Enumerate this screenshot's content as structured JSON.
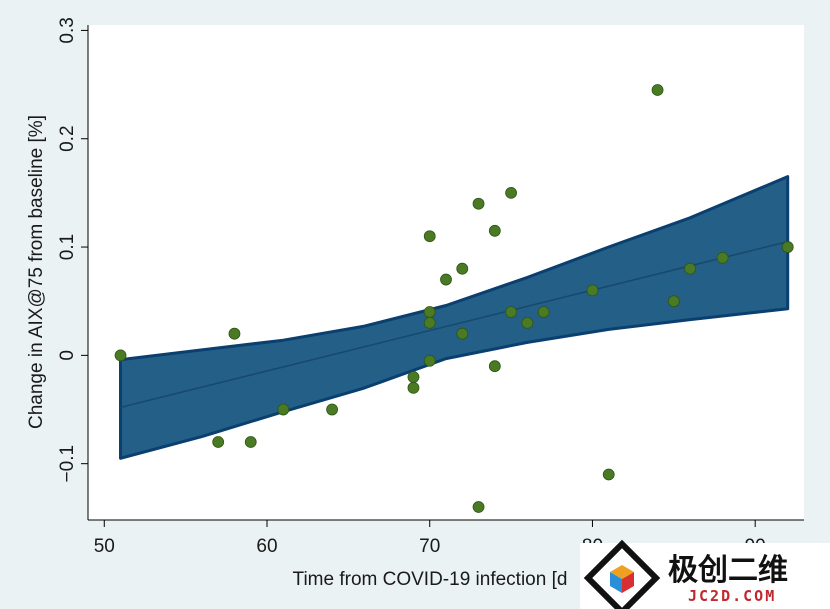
{
  "chart_data": {
    "type": "scatter",
    "xlabel": "Time from COVID-19 infection [d",
    "ylabel": "Change in AIX@75 from baseline [%]",
    "xlim": [
      49,
      93
    ],
    "ylim": [
      -0.152,
      0.305
    ],
    "x_ticks": [
      50,
      60,
      70,
      80,
      90
    ],
    "x_tick_labels": [
      "50",
      "60",
      "70",
      "80",
      "90"
    ],
    "y_ticks": [
      -0.1,
      0,
      0.1,
      0.2,
      0.3
    ],
    "y_tick_labels": [
      "−0.1",
      "0",
      "0.1",
      "0.2",
      "0.3"
    ],
    "grid": false,
    "legend": "none",
    "colors": {
      "band_fill": "#235f86",
      "band_edge": "#0a3f70",
      "fit_line": "#17496e",
      "points": "#4a7a23",
      "plot_bg": "#ffffff",
      "outer_bg": "#eaf2f3"
    },
    "series": [
      {
        "type": "scatter",
        "x": [
          51,
          57,
          58,
          59,
          61,
          64,
          69,
          69,
          70,
          70,
          70,
          70,
          71,
          72,
          72,
          73,
          73,
          74,
          74,
          75,
          75,
          76,
          77,
          80,
          81,
          84,
          85,
          86,
          88,
          92
        ],
        "y": [
          0.0,
          -0.08,
          0.02,
          -0.08,
          -0.05,
          -0.05,
          -0.02,
          -0.03,
          0.11,
          0.04,
          0.03,
          -0.005,
          0.07,
          0.08,
          0.02,
          0.14,
          -0.14,
          0.115,
          -0.01,
          0.15,
          0.04,
          0.03,
          0.04,
          0.06,
          -0.11,
          0.245,
          0.05,
          0.08,
          0.09,
          0.1
        ]
      },
      {
        "type": "line",
        "x": [
          51,
          92
        ],
        "y": [
          -0.048,
          0.105
        ]
      },
      {
        "type": "area",
        "x": [
          51,
          56,
          61,
          66,
          71,
          76,
          81,
          86,
          92
        ],
        "upper": [
          -0.004,
          0.005,
          0.014,
          0.027,
          0.046,
          0.072,
          0.1,
          0.127,
          0.165
        ],
        "lower": [
          -0.095,
          -0.075,
          -0.052,
          -0.03,
          -0.003,
          0.012,
          0.024,
          0.033,
          0.043
        ]
      }
    ]
  },
  "watermark": {
    "text_cn": "极创二维",
    "text_en": "JC2D.COM",
    "icon": "cube-logo-icon"
  }
}
